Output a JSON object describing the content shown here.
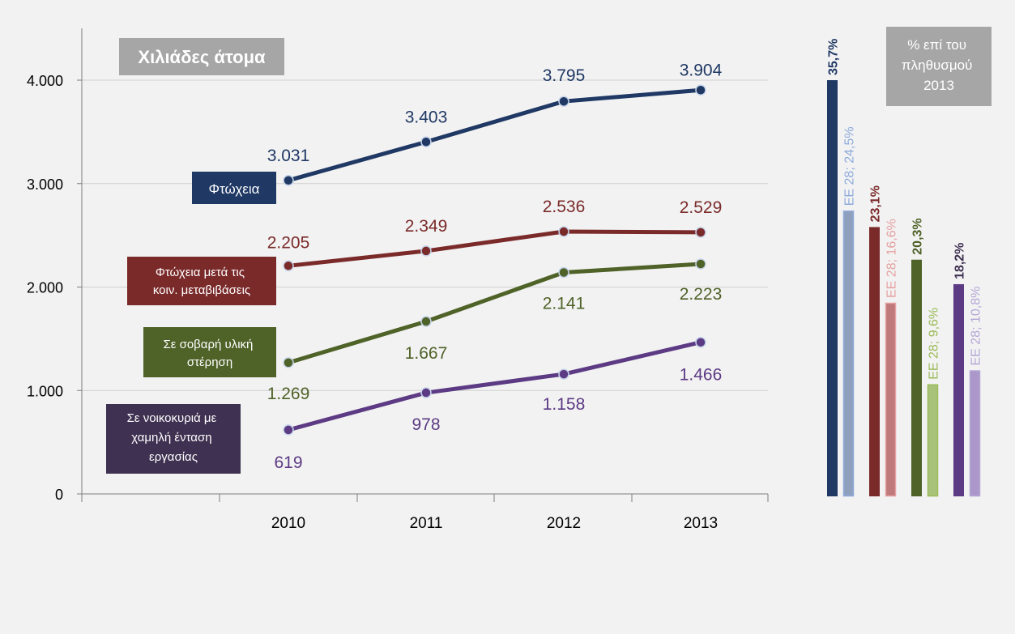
{
  "chart_data": [
    {
      "type": "line",
      "title": "Χιλιάδες άτομα",
      "categories": [
        "2010",
        "2011",
        "2012",
        "2013"
      ],
      "ylim": [
        0,
        4000
      ],
      "y_ticks": [
        0,
        1000,
        2000,
        3000,
        4000
      ],
      "y_tick_labels": [
        "0",
        "1.000",
        "2.000",
        "3.000",
        "4.000"
      ],
      "grid": true,
      "series": [
        {
          "name": "Φτώχεια",
          "values": [
            3031,
            3403,
            3795,
            3904
          ],
          "value_labels": [
            "3.031",
            "3.403",
            "3.795",
            "3.904"
          ],
          "color": "#1f3864"
        },
        {
          "name": "Φτώχεια μετά τις κοιν. μεταβιβάσεις",
          "values": [
            2205,
            2349,
            2536,
            2529
          ],
          "value_labels": [
            "2.205",
            "2.349",
            "2.536",
            "2.529"
          ],
          "color": "#7b2a2a"
        },
        {
          "name": "Σε σοβαρή υλική στέρηση",
          "values": [
            1269,
            1667,
            2141,
            2223
          ],
          "value_labels": [
            "1.269",
            "1.667",
            "2.141",
            "2.223"
          ],
          "color": "#4f6228"
        },
        {
          "name": "Σε νοικοκυριά με χαμηλή ένταση εργασίας",
          "values": [
            619,
            978,
            1158,
            1466
          ],
          "value_labels": [
            "619",
            "978",
            "1.158",
            "1.466"
          ],
          "color": "#5c3a84"
        }
      ]
    },
    {
      "type": "bar",
      "title": "% επί του πληθυσμού 2013",
      "ylim": [
        0,
        35.7
      ],
      "bars": [
        {
          "label": "35,7%",
          "value": 35.7,
          "fill": "#1f3864",
          "label_color": "#1f3864"
        },
        {
          "label": "ΕΕ 28; 24,5%",
          "value": 24.5,
          "fill": "#8ea0bd",
          "label_color": "#8eaadb"
        },
        {
          "label": "23,1%",
          "value": 23.1,
          "fill": "#7b2a2a",
          "label_color": "#7b2a2a"
        },
        {
          "label": "ΕΕ 28; 16,6%",
          "value": 16.6,
          "fill": "#c0797a",
          "label_color": "#e6a1a1"
        },
        {
          "label": "20,3%",
          "value": 20.3,
          "fill": "#4f6228",
          "label_color": "#4f6228"
        },
        {
          "label": "ΕΕ 28; 9,6%",
          "value": 9.6,
          "fill": "#a9c27a",
          "label_color": "#9bbb59"
        },
        {
          "label": "18,2%",
          "value": 18.2,
          "fill": "#5c3a84",
          "label_color": "#3f3151"
        },
        {
          "label": "ΕΕ 28; 10,8%",
          "value": 10.8,
          "fill": "#ab97c9",
          "label_color": "#b4a7d6"
        }
      ]
    }
  ]
}
